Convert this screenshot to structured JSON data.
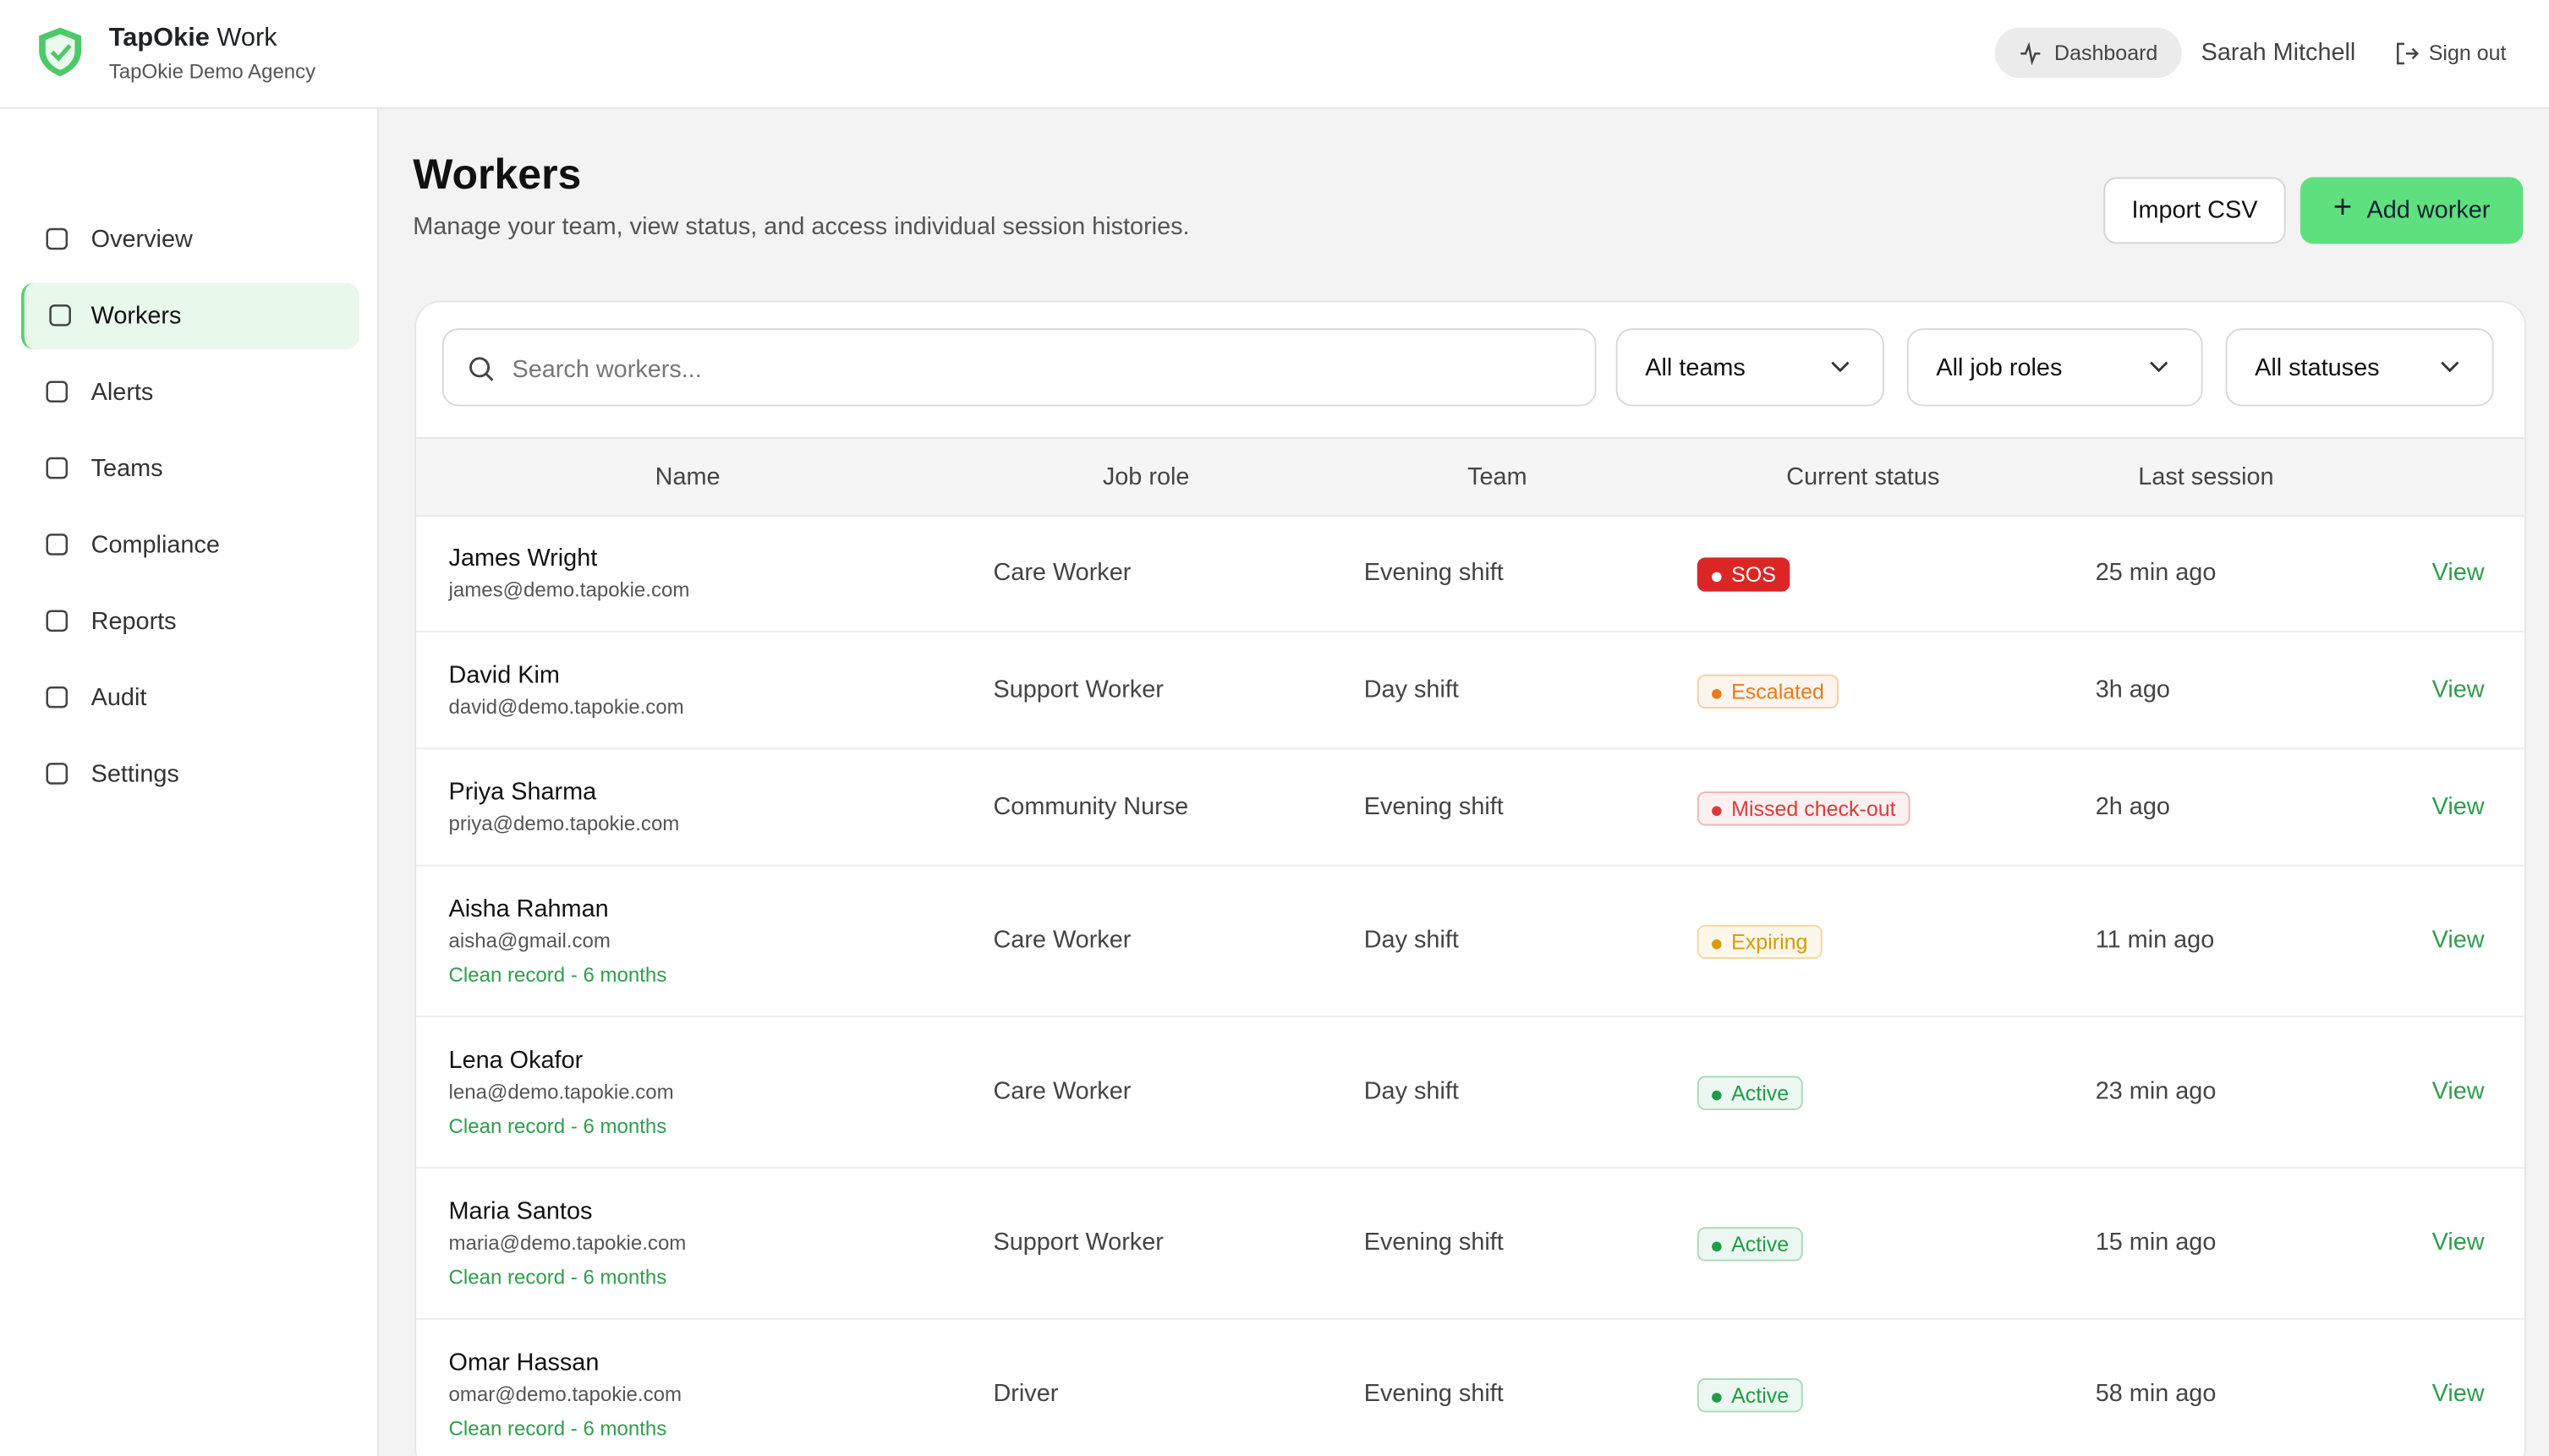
{
  "header": {
    "brand": "TapOkie",
    "product": "Work",
    "agency": "TapOkie Demo Agency",
    "dashboard": "Dashboard",
    "user": "Sarah Mitchell",
    "sign_out": "Sign out"
  },
  "nav": [
    {
      "label": "Overview",
      "active": false
    },
    {
      "label": "Workers",
      "active": true
    },
    {
      "label": "Alerts",
      "active": false
    },
    {
      "label": "Teams",
      "active": false
    },
    {
      "label": "Compliance",
      "active": false
    },
    {
      "label": "Reports",
      "active": false
    },
    {
      "label": "Audit",
      "active": false
    },
    {
      "label": "Settings",
      "active": false
    }
  ],
  "page": {
    "title": "Workers",
    "subtitle": "Manage your team, view status, and access individual session histories.",
    "import_button": "Import CSV",
    "add_button": "Add worker"
  },
  "filters": {
    "search_placeholder": "Search workers...",
    "selects": [
      "All teams",
      "All job roles",
      "All statuses"
    ]
  },
  "table": {
    "columns": [
      "Name",
      "Job role",
      "Team",
      "Current status",
      "Last session"
    ],
    "rows": [
      {
        "name": "James Wright",
        "email": "james@demo.tapokie.com",
        "job_role": "Care Worker",
        "team": "Evening shift",
        "status": {
          "label": "SOS",
          "color": "#dc2626",
          "solid": true
        },
        "last_session": "25 min ago",
        "action": "View"
      },
      {
        "name": "David Kim",
        "email": "david@demo.tapokie.com",
        "job_role": "Support Worker",
        "team": "Day shift",
        "status": {
          "label": "Escalated",
          "color": "#ea7a1a",
          "solid": false
        },
        "last_session": "3h ago",
        "action": "View"
      },
      {
        "name": "Priya Sharma",
        "email": "priya@demo.tapokie.com",
        "job_role": "Community Nurse",
        "team": "Evening shift",
        "status": {
          "label": "Missed check-out",
          "color": "#dc3b3b",
          "solid": false
        },
        "last_session": "2h ago",
        "action": "View"
      },
      {
        "name": "Aisha Rahman",
        "email": "aisha@gmail.com",
        "note": "Clean record - 6 months",
        "job_role": "Care Worker",
        "team": "Day shift",
        "status": {
          "label": "Expiring",
          "color": "#d99a06",
          "solid": false
        },
        "last_session": "11 min ago",
        "action": "View"
      },
      {
        "name": "Lena Okafor",
        "email": "lena@demo.tapokie.com",
        "note": "Clean record - 6 months",
        "job_role": "Care Worker",
        "team": "Day shift",
        "status": {
          "label": "Active",
          "color": "#1f9d48",
          "solid": false
        },
        "last_session": "23 min ago",
        "action": "View"
      },
      {
        "name": "Maria Santos",
        "email": "maria@demo.tapokie.com",
        "note": "Clean record - 6 months",
        "job_role": "Support Worker",
        "team": "Evening shift",
        "status": {
          "label": "Active",
          "color": "#1f9d48",
          "solid": false
        },
        "last_session": "15 min ago",
        "action": "View"
      },
      {
        "name": "Omar Hassan",
        "email": "omar@demo.tapokie.com",
        "note": "Clean record - 6 months",
        "job_role": "Driver",
        "team": "Evening shift",
        "status": {
          "label": "Active",
          "color": "#1f9d48",
          "solid": false
        },
        "last_session": "58 min ago",
        "action": "View"
      }
    ]
  }
}
